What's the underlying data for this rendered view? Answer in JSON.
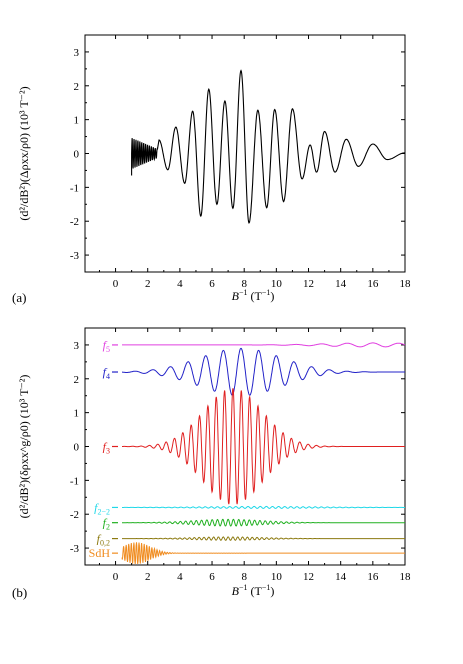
{
  "chart_data": [
    {
      "type": "line",
      "panel_label": "(a)",
      "xlabel_var": "B",
      "xlabel_exp": "−1",
      "xlabel_unit": "(T",
      "xlabel_unit_exp": "−1",
      "xlabel_close": ")",
      "ylabel": "(d²/dB²)(Δρxx/ρ0) (10³ T⁻²)",
      "xlim": [
        -1.9,
        18
      ],
      "ylim": [
        -3.5,
        3.5
      ],
      "xticks": [
        0,
        2,
        4,
        6,
        8,
        10,
        12,
        14,
        16,
        18
      ],
      "yticks": [
        -3,
        -2,
        -1,
        0,
        1,
        2,
        3
      ],
      "series": [
        {
          "color": "#000000",
          "x_range": [
            1.0,
            18.0
          ],
          "peaks": [
            {
              "x": 1.2,
              "y": 0.42
            },
            {
              "x": 2.0,
              "y": -0.38
            },
            {
              "x": 2.7,
              "y": 0.4
            },
            {
              "x": 3.25,
              "y": -0.48
            },
            {
              "x": 3.75,
              "y": 0.78
            },
            {
              "x": 4.3,
              "y": -0.88
            },
            {
              "x": 4.8,
              "y": 1.25
            },
            {
              "x": 5.3,
              "y": -1.85
            },
            {
              "x": 5.8,
              "y": 1.9
            },
            {
              "x": 6.3,
              "y": -1.5
            },
            {
              "x": 6.8,
              "y": 1.55
            },
            {
              "x": 7.3,
              "y": -1.62
            },
            {
              "x": 7.8,
              "y": 2.45
            },
            {
              "x": 8.3,
              "y": -2.05
            },
            {
              "x": 8.85,
              "y": 1.28
            },
            {
              "x": 9.4,
              "y": -1.6
            },
            {
              "x": 9.9,
              "y": 1.3
            },
            {
              "x": 10.45,
              "y": -1.42
            },
            {
              "x": 11.0,
              "y": 1.32
            },
            {
              "x": 11.6,
              "y": -0.75
            },
            {
              "x": 12.1,
              "y": 0.25
            },
            {
              "x": 12.5,
              "y": -0.55
            },
            {
              "x": 13.0,
              "y": 0.65
            },
            {
              "x": 13.65,
              "y": -0.55
            },
            {
              "x": 14.35,
              "y": 0.42
            },
            {
              "x": 15.1,
              "y": -0.38
            },
            {
              "x": 16.0,
              "y": 0.28
            },
            {
              "x": 16.9,
              "y": -0.18
            },
            {
              "x": 18.0,
              "y": 0.02
            }
          ]
        }
      ]
    },
    {
      "type": "line",
      "panel_label": "(b)",
      "xlabel_var": "B",
      "xlabel_exp": "−1",
      "xlabel_unit": "(T",
      "xlabel_unit_exp": "−1",
      "xlabel_close": ")",
      "ylabel": "(d²/dB²)(δρxx^g/ρ0) (10³ T⁻²)",
      "xlim": [
        -1.9,
        18
      ],
      "ylim": [
        -3.5,
        3.5
      ],
      "xticks": [
        0,
        2,
        4,
        6,
        8,
        10,
        12,
        14,
        16,
        18
      ],
      "yticks": [
        -3,
        -2,
        -1,
        0,
        1,
        2,
        3
      ],
      "series": [
        {
          "name": "f5",
          "label_main": "f",
          "label_sub": "5",
          "color": "#e040e0",
          "offset": 3.0,
          "amp_max": 0.06,
          "period": 1.6,
          "center": 16.0,
          "width": 4.0,
          "x_range": [
            0.4,
            18
          ]
        },
        {
          "name": "f4",
          "label_main": "f",
          "label_sub": "4",
          "color": "#2323c8",
          "offset": 2.2,
          "amp_max": 0.7,
          "period": 1.1,
          "center": 7.8,
          "width": 3.6,
          "x_range": [
            0.4,
            18
          ]
        },
        {
          "name": "f3",
          "label_main": "f",
          "label_sub": "3",
          "color": "#e02020",
          "offset": 0.0,
          "amp_max": 1.72,
          "period": 0.52,
          "center": 7.3,
          "width": 2.6,
          "x_range": [
            0.4,
            18
          ]
        },
        {
          "name": "f2-f2",
          "label_main": "f",
          "label_sub": "2−2",
          "color": "#20d8e8",
          "offset": -1.8,
          "amp_max": 0.03,
          "period": 0.38,
          "center": 9.0,
          "width": 5.0,
          "x_range": [
            0.4,
            18
          ]
        },
        {
          "name": "f2",
          "label_main": "f",
          "label_sub": "2",
          "color": "#20b020",
          "offset": -2.25,
          "amp_max": 0.1,
          "period": 0.33,
          "center": 7.0,
          "width": 3.0,
          "x_range": [
            0.4,
            18
          ]
        },
        {
          "name": "f0",
          "label_main": "f",
          "label_sub": "0,2",
          "color": "#8c7a10",
          "offset": -2.72,
          "amp_max": 0.05,
          "period": 0.3,
          "center": 7.0,
          "width": 3.0,
          "x_range": [
            0.4,
            18
          ]
        },
        {
          "name": "SdH",
          "label_main": "SdH",
          "label_sub": "",
          "color": "#f08c20",
          "offset": -3.15,
          "amp_max": 0.32,
          "period": 0.16,
          "center": 1.3,
          "width": 1.2,
          "x_range": [
            0.4,
            18
          ]
        }
      ]
    }
  ]
}
